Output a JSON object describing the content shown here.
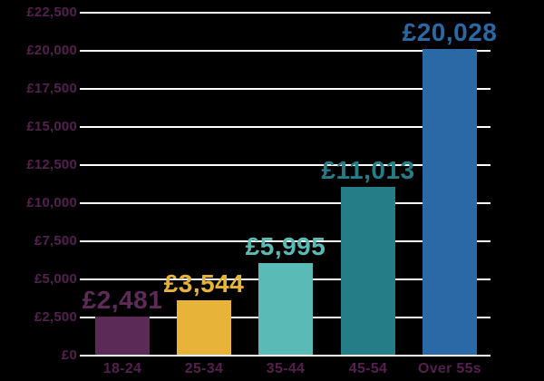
{
  "chart_data": {
    "type": "bar",
    "title": "",
    "xlabel": "",
    "ylabel": "",
    "categories": [
      "18-24",
      "25-34",
      "35-44",
      "45-54",
      "Over 55s"
    ],
    "values": [
      2481,
      3544,
      5995,
      11013,
      20028
    ],
    "value_labels": [
      "£2,481",
      "£3,544",
      "£5,995",
      "£11,013",
      "£20,028"
    ],
    "bar_colors": [
      "#5c2a56",
      "#e7b338",
      "#5abab5",
      "#257e87",
      "#2a68a6"
    ],
    "label_colors": [
      "#5e2b58",
      "#e7b338",
      "#5abab5",
      "#257e87",
      "#2a68a6"
    ],
    "ylim": [
      0,
      22500
    ],
    "yticks": [
      {
        "value": 0,
        "label": "£0"
      },
      {
        "value": 2500,
        "label": "£2,500"
      },
      {
        "value": 5000,
        "label": "£5,000"
      },
      {
        "value": 7500,
        "label": "£7,500"
      },
      {
        "value": 10000,
        "label": "£10,000"
      },
      {
        "value": 12500,
        "label": "£12,500"
      },
      {
        "value": 15000,
        "label": "£15,000"
      },
      {
        "value": 17500,
        "label": "£17,500"
      },
      {
        "value": 20000,
        "label": "£20,000"
      },
      {
        "value": 22500,
        "label": "£22,500"
      }
    ],
    "grid": true,
    "legend": false
  },
  "style": {
    "background": "#000000",
    "gridline_color": "#ffffff",
    "tick_label_color": "#54204e"
  }
}
